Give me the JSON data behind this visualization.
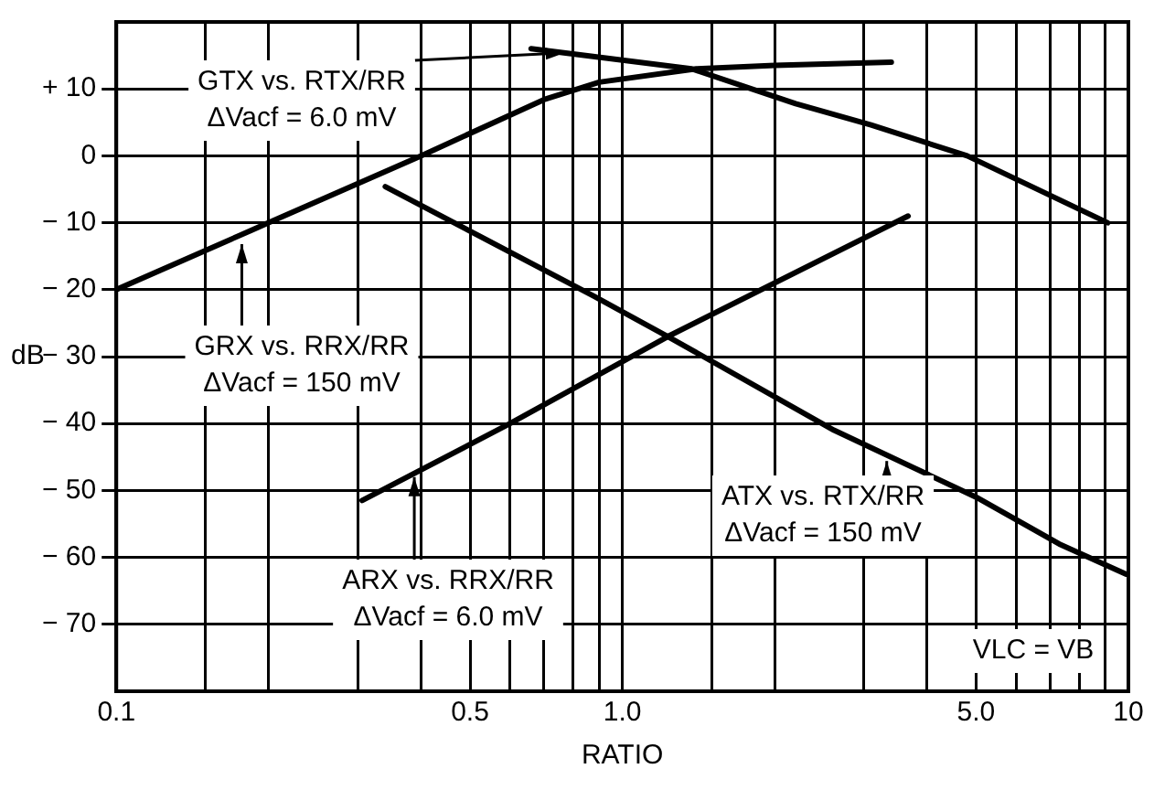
{
  "chart_data": {
    "type": "line",
    "xlabel": "RATIO",
    "ylabel": "dB",
    "log": "x",
    "grid": true,
    "legend": false,
    "marker": "none",
    "line_style": "solid",
    "xlim": [
      0.1,
      10
    ],
    "ylim": [
      -80,
      20
    ],
    "xticks": [
      0.1,
      {
        "value": 0.15,
        "label": null
      },
      {
        "value": 0.2,
        "label": null
      },
      {
        "value": 0.3,
        "label": null
      },
      {
        "value": 0.4,
        "label": null
      },
      0.5,
      {
        "value": 0.6,
        "label": null
      },
      {
        "value": 0.7,
        "label": null
      },
      {
        "value": 0.8,
        "label": null
      },
      {
        "value": 0.9,
        "label": null
      },
      {
        "value": 1,
        "label": "1.0"
      },
      {
        "value": 1.5,
        "label": null
      },
      {
        "value": 2,
        "label": null
      },
      {
        "value": 3,
        "label": null
      },
      {
        "value": 4,
        "label": null
      },
      {
        "value": 5,
        "label": "5.0"
      },
      {
        "value": 6,
        "label": null
      },
      {
        "value": 7,
        "label": null
      },
      {
        "value": 8,
        "label": null
      },
      {
        "value": 9,
        "label": null
      },
      10
    ],
    "yticks": [
      {
        "value": -70,
        "label": "− 70"
      },
      {
        "value": -60,
        "label": "− 60"
      },
      {
        "value": -50,
        "label": "− 50"
      },
      {
        "value": -40,
        "label": "− 40"
      },
      {
        "value": -30,
        "label": "− 30"
      },
      {
        "value": -20,
        "label": "− 20"
      },
      {
        "value": -10,
        "label": "− 10"
      },
      0,
      {
        "value": 10,
        "label": "+ 10"
      }
    ],
    "series": [
      {
        "color": "#000000",
        "x": [
          0.1,
          0.2,
          0.4,
          0.7,
          0.9,
          1.4,
          2,
          3.4
        ],
        "values": [
          -20,
          -10,
          0,
          8.4,
          11,
          13,
          13.5,
          14
        ]
      },
      {
        "color": "#000000",
        "x": [
          0.66,
          1.37,
          2.2,
          3.1,
          4.8,
          9.1
        ],
        "values": [
          16,
          13,
          7.8,
          4.6,
          0,
          -10
        ]
      },
      {
        "color": "#000000",
        "x": [
          0.34,
          0.88,
          1.23,
          2.62,
          5,
          7.3,
          9.9
        ],
        "values": [
          -4.6,
          -21,
          -27,
          -41,
          -51,
          -58,
          -62.5
        ]
      },
      {
        "color": "#000000",
        "x": [
          0.306,
          0.6,
          1.23,
          3.67
        ],
        "values": [
          -51.5,
          -40,
          -27,
          -9
        ]
      }
    ],
    "annotations": [
      {
        "text": "GTX vs. RTX/RR\nΔVacf = 6.0 mV",
        "x": 0.77,
        "y": 15.4
      },
      {
        "text": "GRX vs. RRX/RR\nΔVacf = 150 mV",
        "x": 0.177,
        "y": -13.2
      },
      {
        "text": "ARX vs. RRX/RR\nΔVacf = 6.0 mV",
        "x": 0.388,
        "y": -48
      },
      {
        "text": "ATX vs. RTX/RR\nΔVacf = 150 mV",
        "x": 3.33,
        "y": -45.6
      },
      "VLC = VB"
    ]
  }
}
